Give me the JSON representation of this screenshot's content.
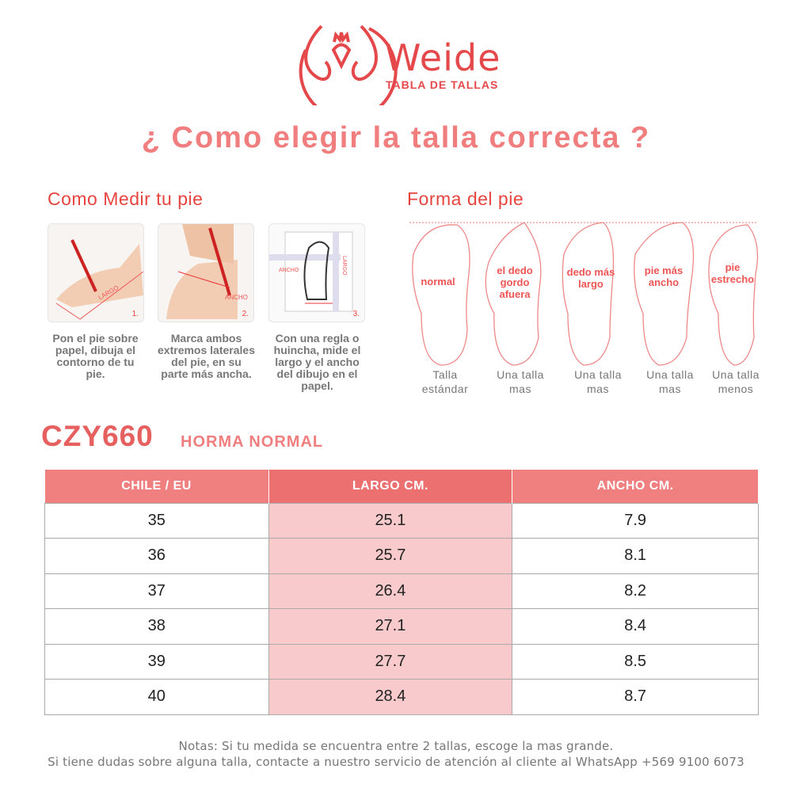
{
  "header": {
    "brand": "Weide",
    "subtitle": "TABLA DE TALLAS",
    "title": "¿ Como elegir la talla correcta ?"
  },
  "colors": {
    "brand": "#e5484a",
    "title": "#f07e7e",
    "table_header": "#f08080",
    "highlight_column": "#f8cacb"
  },
  "measure": {
    "heading": "Como Medir tu pie",
    "steps": [
      {
        "num": "1.",
        "tag": "LARGO",
        "text": "Pon el pie sobre papel, dibuja el contorno de tu pie."
      },
      {
        "num": "2.",
        "tag": "ANCHO",
        "text": "Marca ambos extremos laterales del pie, en su parte más ancha."
      },
      {
        "num": "3.",
        "tag": "ANCHO",
        "tag2": "LARGO",
        "text": "Con una regla o huincha, mide el largo y el ancho del dibujo en el papel."
      }
    ]
  },
  "foot_shape": {
    "heading": "Forma del pie",
    "types": [
      {
        "inner": "normal",
        "label": "Talla estándar"
      },
      {
        "inner": "el dedo gordo afuera",
        "label": "Una talla mas"
      },
      {
        "inner": "dedo más largo",
        "label": "Una talla mas"
      },
      {
        "inner": "pie más ancho",
        "label": "Una talla mas"
      },
      {
        "inner": "pie estrecho",
        "label": "Una talla menos"
      }
    ]
  },
  "model": {
    "code": "CZY660",
    "fit": "HORMA NORMAL"
  },
  "table": {
    "headers": [
      "CHILE / EU",
      "LARGO CM.",
      "ANCHO CM."
    ],
    "rows": [
      [
        "35",
        "25.1",
        "7.9"
      ],
      [
        "36",
        "25.7",
        "8.1"
      ],
      [
        "37",
        "26.4",
        "8.2"
      ],
      [
        "38",
        "27.1",
        "8.4"
      ],
      [
        "39",
        "27.7",
        "8.5"
      ],
      [
        "40",
        "28.4",
        "8.7"
      ]
    ]
  },
  "notes": [
    "Notas: Si tu medida se encuentra entre 2 tallas, escoge la mas grande.",
    "Si tiene dudas sobre alguna talla, contacte a nuestro servicio de atención al cliente al WhatsApp +569 9100 6073"
  ]
}
